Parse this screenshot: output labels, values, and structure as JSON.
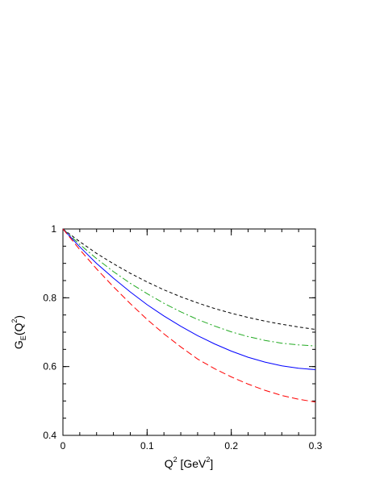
{
  "chart_data": {
    "type": "line",
    "xlabel": "Q² [GeV²]",
    "xlabel_parts": {
      "base": "Q",
      "exp": "2",
      "unit_open": " [GeV",
      "unit_exp": "2",
      "unit_close": "]"
    },
    "ylabel": "G_E(Q²)",
    "ylabel_parts": {
      "base": "G",
      "sub": "E",
      "open": "(Q",
      "exp": "2",
      "close": ")"
    },
    "xlim": [
      0,
      0.3
    ],
    "ylim": [
      0.4,
      1.0
    ],
    "x_ticks": [
      {
        "value": 0,
        "label": "0"
      },
      {
        "value": 0.1,
        "label": "0.1"
      },
      {
        "value": 0.2,
        "label": "0.2"
      },
      {
        "value": 0.3,
        "label": "0.3"
      }
    ],
    "y_ticks": [
      {
        "value": 0.4,
        "label": "0.4"
      },
      {
        "value": 0.6,
        "label": "0.6"
      },
      {
        "value": 0.8,
        "label": "0.8"
      },
      {
        "value": 1.0,
        "label": "1"
      }
    ],
    "x_minor_step": 0.02,
    "y_minor_step": 0.05,
    "grid": false,
    "series": [
      {
        "color": "#000000",
        "dash": "short-dash",
        "x": [
          0,
          0.02,
          0.04,
          0.06,
          0.08,
          0.1,
          0.12,
          0.14,
          0.16,
          0.18,
          0.2,
          0.22,
          0.24,
          0.26,
          0.28,
          0.3
        ],
        "y": [
          1.0,
          0.963,
          0.929,
          0.899,
          0.871,
          0.846,
          0.823,
          0.803,
          0.785,
          0.769,
          0.755,
          0.743,
          0.732,
          0.723,
          0.715,
          0.708
        ]
      },
      {
        "color": "#22aa22",
        "dash": "dash-dot",
        "x": [
          0,
          0.02,
          0.04,
          0.06,
          0.08,
          0.1,
          0.12,
          0.14,
          0.16,
          0.18,
          0.2,
          0.22,
          0.24,
          0.26,
          0.28,
          0.3
        ],
        "y": [
          1.0,
          0.955,
          0.914,
          0.876,
          0.842,
          0.812,
          0.784,
          0.759,
          0.737,
          0.718,
          0.701,
          0.687,
          0.676,
          0.668,
          0.663,
          0.66
        ]
      },
      {
        "color": "#0000ff",
        "dash": "solid",
        "x": [
          0,
          0.02,
          0.04,
          0.06,
          0.08,
          0.1,
          0.12,
          0.14,
          0.16,
          0.18,
          0.2,
          0.22,
          0.24,
          0.26,
          0.28,
          0.3
        ],
        "y": [
          1.0,
          0.948,
          0.9,
          0.857,
          0.817,
          0.78,
          0.747,
          0.717,
          0.69,
          0.666,
          0.645,
          0.627,
          0.613,
          0.602,
          0.595,
          0.591
        ]
      },
      {
        "color": "#ff0000",
        "dash": "long-dash",
        "x": [
          0,
          0.02,
          0.04,
          0.06,
          0.08,
          0.1,
          0.12,
          0.14,
          0.16,
          0.18,
          0.2,
          0.22,
          0.24,
          0.26,
          0.28,
          0.3
        ],
        "y": [
          1.0,
          0.94,
          0.884,
          0.832,
          0.783,
          0.737,
          0.695,
          0.657,
          0.622,
          0.594,
          0.57,
          0.549,
          0.531,
          0.516,
          0.505,
          0.497
        ]
      }
    ]
  }
}
